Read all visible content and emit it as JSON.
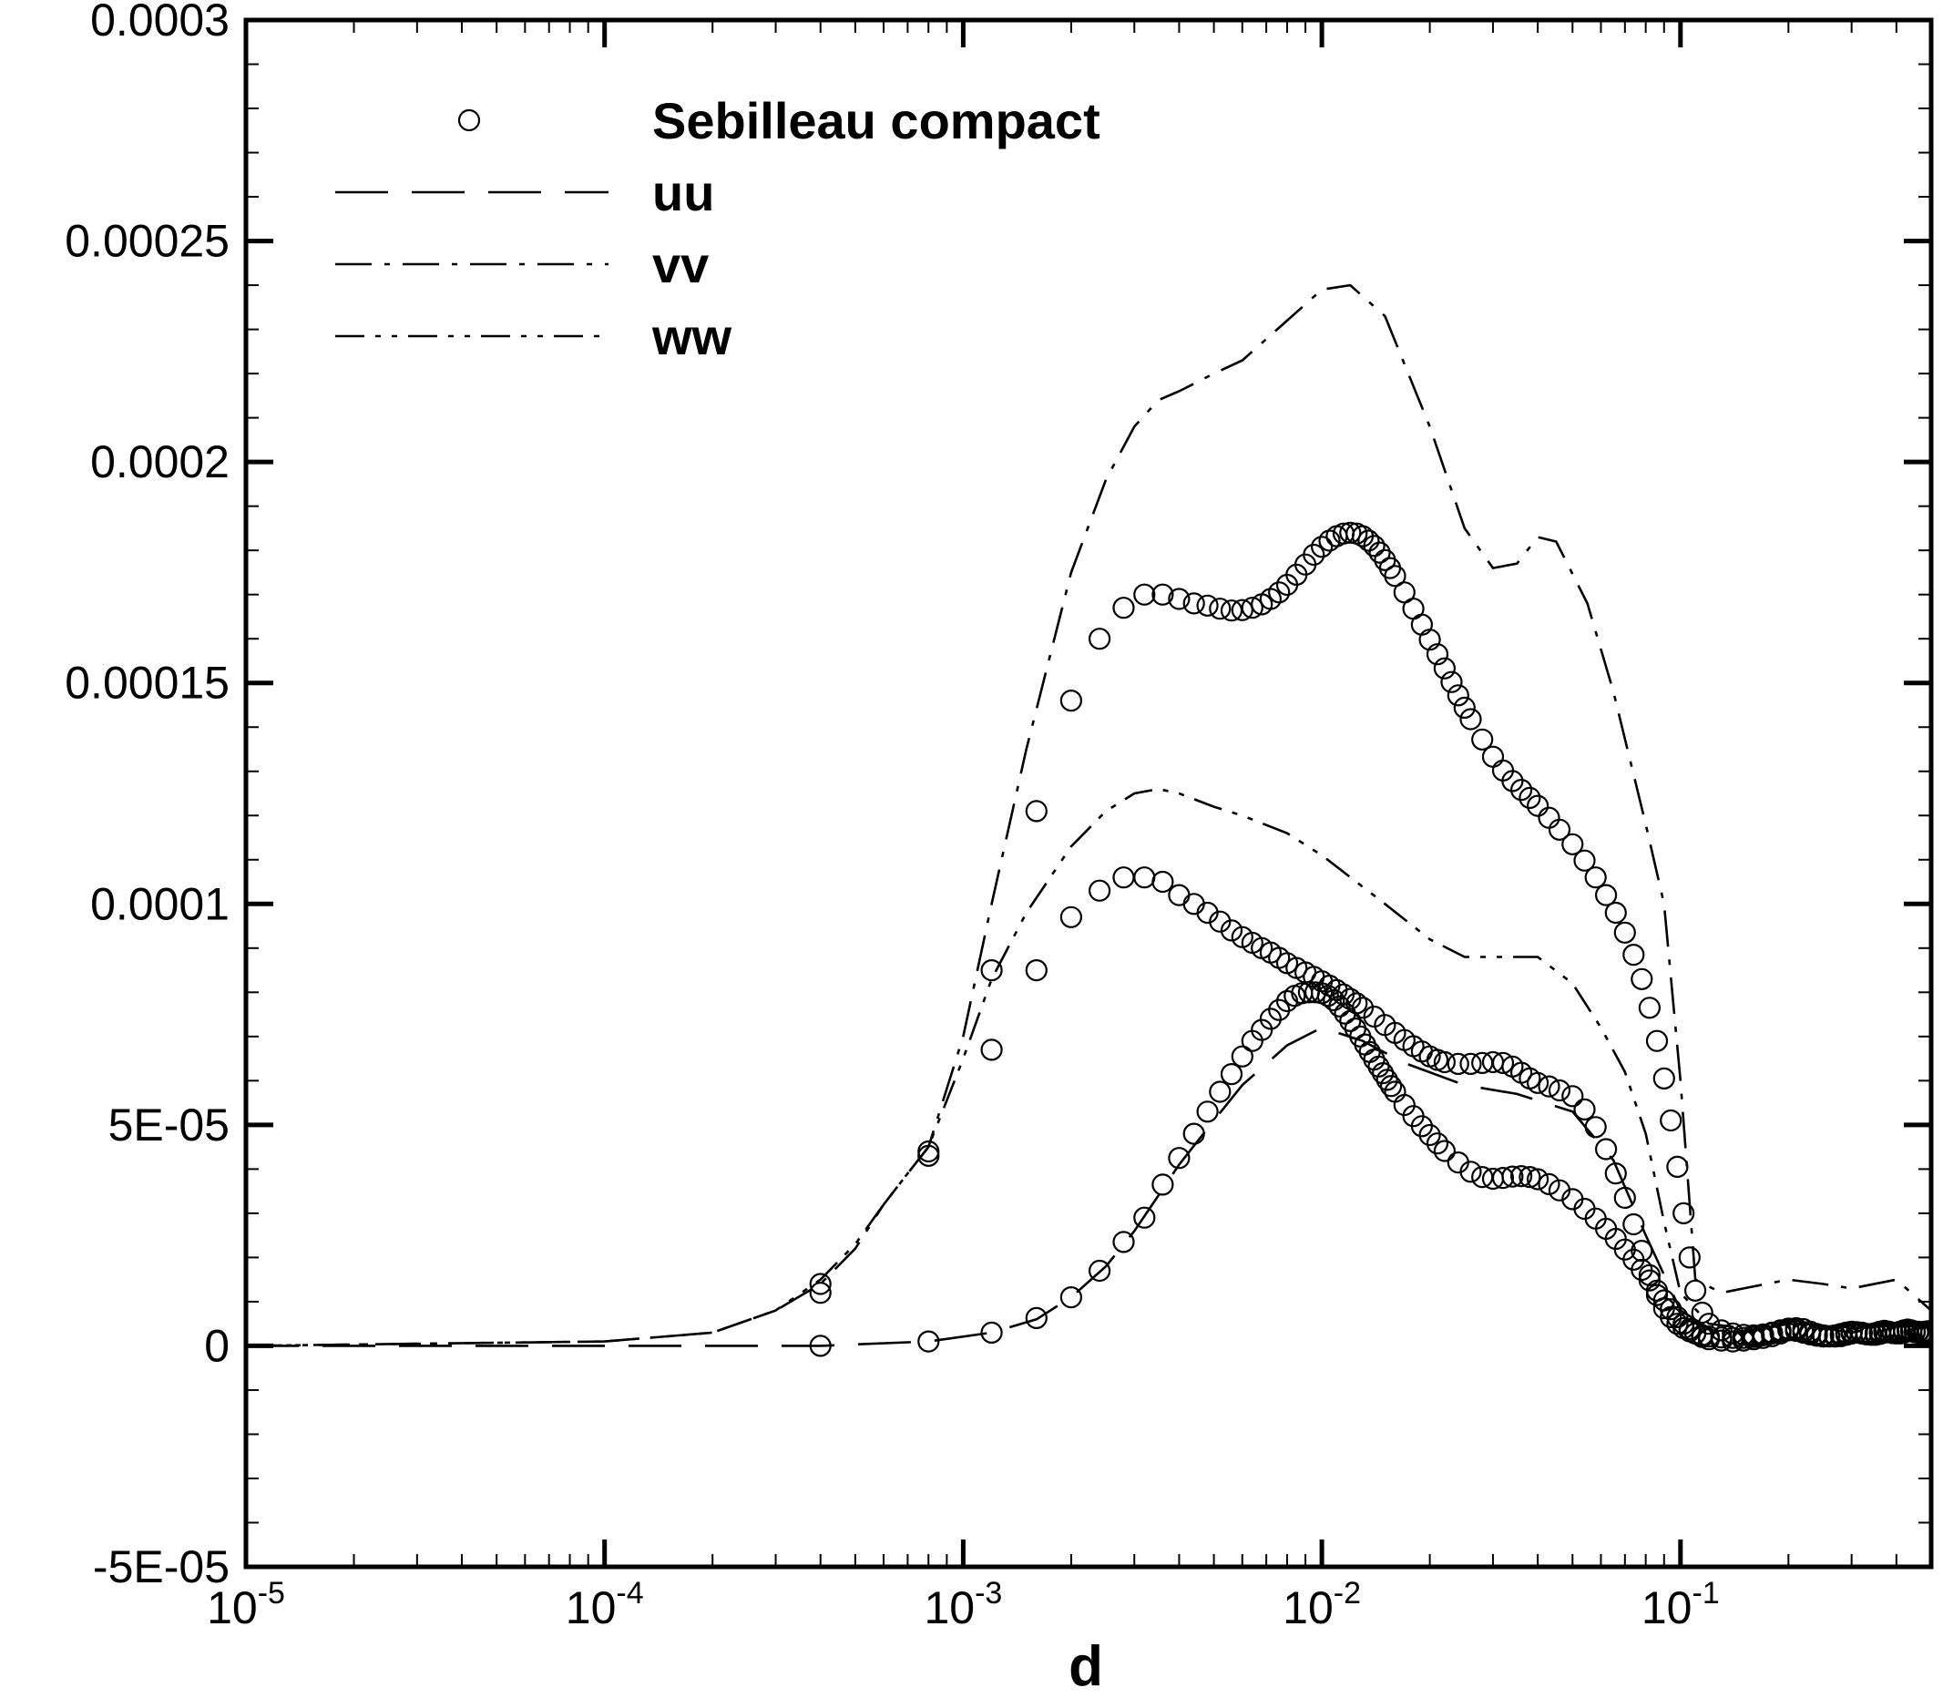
{
  "chart_data": {
    "type": "line",
    "x_scale": "log",
    "xlim": [
      1e-05,
      0.5
    ],
    "ylim": [
      -5e-05,
      0.0003
    ],
    "xlabel": "d",
    "ylabel": "",
    "grid": false,
    "legend_position": "top-left",
    "y_ticks": [
      {
        "value": -5e-05,
        "label": "-5E-05"
      },
      {
        "value": 0,
        "label": "0"
      },
      {
        "value": 5e-05,
        "label": "5E-05"
      },
      {
        "value": 0.0001,
        "label": "0.0001"
      },
      {
        "value": 0.00015,
        "label": "0.00015"
      },
      {
        "value": 0.0002,
        "label": "0.0002"
      },
      {
        "value": 0.00025,
        "label": "0.00025"
      },
      {
        "value": 0.0003,
        "label": "0.0003"
      }
    ],
    "x_ticks": [
      {
        "value": 1e-05,
        "base": "10",
        "exp": "-5"
      },
      {
        "value": 0.0001,
        "base": "10",
        "exp": "-4"
      },
      {
        "value": 0.001,
        "base": "10",
        "exp": "-3"
      },
      {
        "value": 0.01,
        "base": "10",
        "exp": "-2"
      },
      {
        "value": 0.1,
        "base": "10",
        "exp": "-1"
      }
    ],
    "legend": [
      {
        "label": "Sebilleau compact",
        "style": "circle"
      },
      {
        "label": "uu",
        "style": "long-dash"
      },
      {
        "label": "vv",
        "style": "dash-dot"
      },
      {
        "label": "ww",
        "style": "dash-dot-dot"
      }
    ],
    "series": [
      {
        "name": "uu",
        "style": "long-dash",
        "x": [
          1e-05,
          0.0001,
          0.0004,
          0.0008,
          0.0012,
          0.0016,
          0.002,
          0.0025,
          0.003,
          0.0035,
          0.004,
          0.005,
          0.006,
          0.008,
          0.01,
          0.013,
          0.017,
          0.025,
          0.035,
          0.05,
          0.065,
          0.08,
          0.1,
          0.12,
          0.15,
          0.2,
          0.25,
          0.3,
          0.4,
          0.5
        ],
        "y": [
          0,
          0,
          0,
          1e-06,
          3e-06,
          6e-06,
          1.1e-05,
          1.8e-05,
          2.6e-05,
          3.4e-05,
          4.1e-05,
          5.1e-05,
          5.9e-05,
          6.8e-05,
          7.2e-05,
          6.9e-05,
          6.4e-05,
          5.9e-05,
          5.7e-05,
          5.3e-05,
          4.2e-05,
          2.5e-05,
          8e-06,
          4e-06,
          3e-06,
          5e-06,
          4e-06,
          3e-06,
          5e-06,
          4e-06
        ]
      },
      {
        "name": "vv",
        "style": "dash-dot",
        "x": [
          1e-05,
          0.0001,
          0.0002,
          0.0003,
          0.0004,
          0.0005,
          0.0006,
          0.0007,
          0.0008,
          0.001,
          0.0012,
          0.0015,
          0.002,
          0.0025,
          0.003,
          0.0035,
          0.004,
          0.005,
          0.006,
          0.008,
          0.01,
          0.012,
          0.015,
          0.02,
          0.025,
          0.03,
          0.035,
          0.04,
          0.045,
          0.055,
          0.065,
          0.08,
          0.09,
          0.1,
          0.11,
          0.13,
          0.15,
          0.2,
          0.25,
          0.3,
          0.4,
          0.5
        ],
        "y": [
          0,
          1e-06,
          3e-06,
          8e-06,
          1.4e-05,
          2.2e-05,
          3.2e-05,
          3.9e-05,
          4.5e-05,
          7e-05,
          0.0001,
          0.000135,
          0.000175,
          0.000196,
          0.000208,
          0.000214,
          0.000216,
          0.00022,
          0.000223,
          0.000232,
          0.000239,
          0.00024,
          0.000233,
          0.000208,
          0.000185,
          0.000176,
          0.000177,
          0.000183,
          0.000182,
          0.000168,
          0.000148,
          0.000118,
          0.0001,
          6e-05,
          1.5e-05,
          1.2e-05,
          1.3e-05,
          1.5e-05,
          1.4e-05,
          1.3e-05,
          1.5e-05,
          8e-06
        ]
      },
      {
        "name": "ww",
        "style": "dash-dot-dot",
        "x": [
          1e-05,
          0.0001,
          0.0002,
          0.0003,
          0.0004,
          0.0005,
          0.0006,
          0.0007,
          0.0008,
          0.001,
          0.0012,
          0.0015,
          0.002,
          0.0025,
          0.003,
          0.0035,
          0.004,
          0.005,
          0.006,
          0.008,
          0.01,
          0.015,
          0.02,
          0.025,
          0.03,
          0.04,
          0.05,
          0.06,
          0.07,
          0.08,
          0.09,
          0.1,
          0.12,
          0.15,
          0.2,
          0.3,
          0.4,
          0.5
        ],
        "y": [
          0,
          1e-06,
          3e-06,
          8e-06,
          1.5e-05,
          2.3e-05,
          3.2e-05,
          3.9e-05,
          4.5e-05,
          6.5e-05,
          8.3e-05,
          9.8e-05,
          0.000113,
          0.000121,
          0.000125,
          0.000126,
          0.000125,
          0.000122,
          0.00012,
          0.000116,
          0.000111,
          0.0001,
          9.2e-05,
          8.8e-05,
          8.8e-05,
          8.8e-05,
          8.2e-05,
          7.2e-05,
          6.2e-05,
          4.8e-05,
          2.8e-05,
          1.2e-05,
          5e-06,
          4e-06,
          5e-06,
          4e-06,
          5e-06,
          4e-06
        ]
      },
      {
        "name": "Sebilleau compact",
        "style": "circle",
        "x": [
          0.0004,
          0.0008,
          0.0012,
          0.0016,
          0.002,
          0.0024,
          0.0028,
          0.0032,
          0.0036,
          0.004,
          0.0044,
          0.0048,
          0.0052,
          0.0056,
          0.006,
          0.0064,
          0.0068,
          0.0072,
          0.0076,
          0.008,
          0.0084,
          0.0088,
          0.0092,
          0.0096,
          0.01,
          0.0104,
          0.0108,
          0.0112,
          0.0116,
          0.012,
          0.0124,
          0.0128,
          0.0132,
          0.0136,
          0.014,
          0.0144,
          0.0148,
          0.0152,
          0.0156,
          0.016,
          0.017,
          0.018,
          0.019,
          0.02,
          0.021,
          0.022,
          0.024,
          0.026,
          0.028,
          0.03,
          0.032,
          0.034,
          0.036,
          0.038,
          0.04,
          0.043,
          0.046,
          0.05,
          0.054,
          0.058,
          0.062,
          0.066,
          0.07,
          0.074,
          0.078,
          0.082,
          0.086,
          0.09,
          0.094,
          0.098,
          0.102,
          0.106,
          0.11,
          0.115,
          0.12,
          0.13,
          0.14,
          0.15,
          0.16,
          0.17,
          0.18,
          0.19,
          0.2,
          0.21,
          0.22,
          0.23,
          0.24,
          0.25,
          0.26,
          0.27,
          0.28,
          0.29,
          0.3,
          0.31,
          0.32,
          0.33,
          0.34,
          0.35,
          0.36,
          0.37,
          0.38,
          0.39,
          0.4,
          0.41,
          0.42,
          0.43,
          0.44,
          0.45,
          0.46,
          0.47,
          0.48,
          0.49,
          0.5
        ],
        "y": [
          0,
          1e-06,
          3e-06,
          6.3e-06,
          1.1e-05,
          1.7e-05,
          2.35e-05,
          2.9e-05,
          3.65e-05,
          4.25e-05,
          4.8e-05,
          5.3e-05,
          5.75e-05,
          6.15e-05,
          6.55e-05,
          6.9e-05,
          7.15e-05,
          7.4e-05,
          7.6e-05,
          7.8e-05,
          7.92e-05,
          7.98e-05,
          8e-05,
          8e-05,
          7.98e-05,
          7.92e-05,
          7.82e-05,
          7.68e-05,
          7.52e-05,
          7.35e-05,
          7.18e-05,
          7e-05,
          6.82e-05,
          6.65e-05,
          6.48e-05,
          6.32e-05,
          6.17e-05,
          6.02e-05,
          5.88e-05,
          5.75e-05,
          5.45e-05,
          5.2e-05,
          4.97e-05,
          4.77e-05,
          4.58e-05,
          4.41e-05,
          4.15e-05,
          3.94e-05,
          3.82e-05,
          3.78e-05,
          3.8e-05,
          3.83e-05,
          3.84e-05,
          3.82e-05,
          3.77e-05,
          3.66e-05,
          3.52e-05,
          3.32e-05,
          3.1e-05,
          2.88e-05,
          2.65e-05,
          2.42e-05,
          2.18e-05,
          1.95e-05,
          1.72e-05,
          1.48e-05,
          1.25e-05,
          1.03e-05,
          8.3e-06,
          6.5e-06,
          5e-06,
          3.8e-06,
          2.8e-06,
          2e-06,
          1.5e-06,
          1.2e-06,
          1e-06,
          1.2e-06,
          1.5e-06,
          1.8e-06,
          2.2e-06,
          2.8e-06,
          3.5e-06,
          4e-06,
          3.8e-06,
          3.2e-06,
          2.7e-06,
          2.4e-06,
          2.2e-06,
          2.1e-06,
          2.2e-06,
          2.5e-06,
          2.8e-06,
          3e-06,
          3e-06,
          2.7e-06,
          2.5e-06,
          2.5e-06,
          2.7e-06,
          3e-06,
          3.2e-06,
          3e-06,
          2.8e-06,
          2.8e-06,
          3e-06,
          3.3e-06,
          3.5e-06,
          3.2e-06,
          3e-06,
          3e-06,
          2.8e-06,
          3e-06,
          3e-06
        ]
      },
      {
        "name": "Sebilleau compact",
        "style": "circle",
        "x": [
          0.0004,
          0.0008,
          0.0012,
          0.0016,
          0.002,
          0.0024,
          0.0028,
          0.0032,
          0.0036,
          0.004,
          0.0044,
          0.0048,
          0.0052,
          0.0056,
          0.006,
          0.0064,
          0.0068,
          0.0072,
          0.0076,
          0.008,
          0.0085,
          0.009,
          0.0095,
          0.01,
          0.0105,
          0.011,
          0.0115,
          0.012,
          0.0125,
          0.013,
          0.014,
          0.015,
          0.016,
          0.017,
          0.018,
          0.019,
          0.02,
          0.021,
          0.022,
          0.024,
          0.026,
          0.028,
          0.03,
          0.032,
          0.034,
          0.036,
          0.038,
          0.04,
          0.043,
          0.046,
          0.05,
          0.054,
          0.058,
          0.062,
          0.066,
          0.07,
          0.074,
          0.078,
          0.082,
          0.086,
          0.09,
          0.094,
          0.098,
          0.102,
          0.106,
          0.11,
          0.115,
          0.12,
          0.13,
          0.14,
          0.15,
          0.16,
          0.17,
          0.18,
          0.19,
          0.2,
          0.21,
          0.22,
          0.23,
          0.24,
          0.25,
          0.26,
          0.27,
          0.28,
          0.29,
          0.3,
          0.31,
          0.32,
          0.33,
          0.34,
          0.35,
          0.36,
          0.37,
          0.38,
          0.39,
          0.4,
          0.41,
          0.42,
          0.43,
          0.44,
          0.45,
          0.46,
          0.47,
          0.48,
          0.49,
          0.5
        ],
        "y": [
          1.4e-05,
          4.3e-05,
          6.7e-05,
          8.5e-05,
          9.7e-05,
          0.000103,
          0.000106,
          0.000106,
          0.000105,
          0.000102,
          0.0001,
          9.8e-05,
          9.6e-05,
          9.4e-05,
          9.25e-05,
          9.12e-05,
          9e-05,
          8.9e-05,
          8.78e-05,
          8.66e-05,
          8.55e-05,
          8.45e-05,
          8.35e-05,
          8.25e-05,
          8.15e-05,
          8.05e-05,
          7.95e-05,
          7.85e-05,
          7.75e-05,
          7.65e-05,
          7.45e-05,
          7.26e-05,
          7.08e-05,
          6.92e-05,
          6.78e-05,
          6.66e-05,
          6.55e-05,
          6.47e-05,
          6.42e-05,
          6.38e-05,
          6.38e-05,
          6.4e-05,
          6.42e-05,
          6.4e-05,
          6.32e-05,
          6.18e-05,
          6.05e-05,
          5.95e-05,
          5.87e-05,
          5.78e-05,
          5.65e-05,
          5.35e-05,
          4.95e-05,
          4.45e-05,
          3.9e-05,
          3.35e-05,
          2.75e-05,
          2.15e-05,
          1.6e-05,
          1.15e-05,
          8.5e-06,
          6.5e-06,
          5e-06,
          4e-06,
          3.3e-06,
          2.8e-06,
          2.4e-06,
          2.1e-06,
          1.9e-06,
          1.8e-06,
          1.8e-06,
          2e-06,
          2.4e-06,
          2.8e-06,
          3.3e-06,
          3.6e-06,
          3.4e-06,
          3e-06,
          2.6e-06,
          2.3e-06,
          2.1e-06,
          2.1e-06,
          2.3e-06,
          2.6e-06,
          2.9e-06,
          3.1e-06,
          3e-06,
          2.8e-06,
          2.6e-06,
          2.6e-06,
          2.8e-06,
          3.1e-06,
          3.3e-06,
          3.1e-06,
          2.9e-06,
          2.9e-06,
          3.1e-06,
          3.4e-06,
          3.6e-06,
          3.3e-06,
          3.1e-06,
          3.1e-06,
          2.9e-06,
          3.1e-06,
          3.2e-06,
          3e-06
        ]
      },
      {
        "name": "Sebilleau compact",
        "style": "circle",
        "x": [
          0.0004,
          0.0008,
          0.0012,
          0.0016,
          0.002,
          0.0024,
          0.0028,
          0.0032,
          0.0036,
          0.004,
          0.0044,
          0.0048,
          0.0052,
          0.0056,
          0.006,
          0.0064,
          0.0068,
          0.0072,
          0.0076,
          0.008,
          0.0085,
          0.009,
          0.0095,
          0.01,
          0.0105,
          0.011,
          0.0115,
          0.012,
          0.0125,
          0.013,
          0.0135,
          0.014,
          0.0145,
          0.015,
          0.0155,
          0.016,
          0.017,
          0.018,
          0.019,
          0.02,
          0.021,
          0.022,
          0.023,
          0.024,
          0.025,
          0.026,
          0.028,
          0.03,
          0.032,
          0.034,
          0.036,
          0.038,
          0.04,
          0.043,
          0.046,
          0.05,
          0.054,
          0.058,
          0.062,
          0.066,
          0.07,
          0.074,
          0.078,
          0.082,
          0.086,
          0.09,
          0.094,
          0.098,
          0.102,
          0.106,
          0.11,
          0.115,
          0.12,
          0.13,
          0.14,
          0.15,
          0.16,
          0.17,
          0.18,
          0.19,
          0.2,
          0.21,
          0.22,
          0.23,
          0.24,
          0.25,
          0.26,
          0.27,
          0.28,
          0.29,
          0.3,
          0.31,
          0.32,
          0.33,
          0.34,
          0.35,
          0.36,
          0.37,
          0.38,
          0.39,
          0.4,
          0.41,
          0.42,
          0.43,
          0.44,
          0.45,
          0.46,
          0.47,
          0.48,
          0.49,
          0.5
        ],
        "y": [
          1.2e-05,
          4.4e-05,
          8.5e-05,
          0.000121,
          0.000146,
          0.00016,
          0.000167,
          0.00017,
          0.00017,
          0.000169,
          0.000168,
          0.0001675,
          0.0001668,
          0.0001664,
          0.0001665,
          0.000167,
          0.0001678,
          0.000169,
          0.0001705,
          0.0001722,
          0.0001745,
          0.0001768,
          0.000179,
          0.0001808,
          0.0001822,
          0.0001832,
          0.0001838,
          0.000184,
          0.0001838,
          0.0001832,
          0.0001822,
          0.000181,
          0.0001795,
          0.0001778,
          0.000176,
          0.0001742,
          0.0001705,
          0.0001668,
          0.0001632,
          0.0001598,
          0.0001565,
          0.0001533,
          0.0001502,
          0.0001472,
          0.0001444,
          0.0001418,
          0.0001372,
          0.0001333,
          0.0001302,
          0.0001278,
          0.0001258,
          0.000124,
          0.0001222,
          0.0001195,
          0.0001168,
          0.0001135,
          0.0001098,
          0.000106,
          0.000102,
          9.8e-05,
          9.35e-05,
          8.85e-05,
          8.3e-05,
          7.65e-05,
          6.9e-05,
          6.05e-05,
          5.1e-05,
          4.05e-05,
          3e-05,
          2e-05,
          1.25e-05,
          7.5e-06,
          5e-06,
          3.5e-06,
          2.8e-06,
          2.5e-06,
          2.4e-06,
          2.6e-06,
          3e-06,
          3.5e-06,
          3.9e-06,
          3.6e-06,
          3.1e-06,
          2.7e-06,
          2.4e-06,
          2.2e-06,
          2.2e-06,
          2.4e-06,
          2.7e-06,
          3e-06,
          3.2e-06,
          3.1e-06,
          2.9e-06,
          2.7e-06,
          2.7e-06,
          2.9e-06,
          3.2e-06,
          3.4e-06,
          3.2e-06,
          3e-06,
          3e-06,
          3.2e-06,
          3.5e-06,
          3.7e-06,
          3.4e-06,
          3.2e-06,
          3.2e-06,
          3e-06,
          3.2e-06,
          3.3e-06,
          3.1e-06
        ]
      }
    ]
  }
}
